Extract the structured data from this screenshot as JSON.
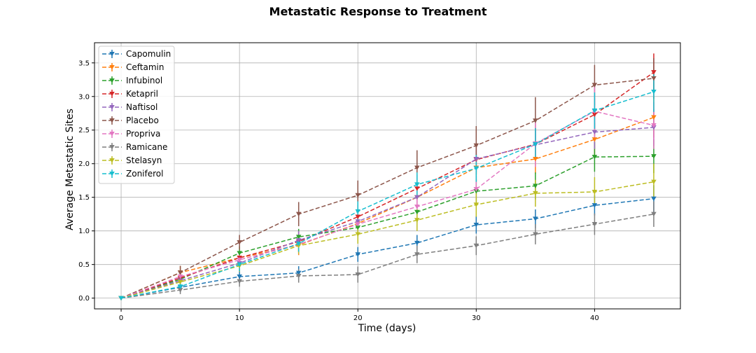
{
  "chart_data": {
    "type": "line",
    "title": "Metastatic Response to Treatment",
    "xlabel": "Time (days)",
    "ylabel": "Average Metastatic Sites",
    "x": [
      0,
      5,
      10,
      15,
      20,
      25,
      30,
      35,
      40,
      45
    ],
    "xlim": [
      -2.25,
      47.25
    ],
    "ylim": [
      -0.16,
      3.8
    ],
    "x_ticks": [
      0,
      10,
      20,
      30,
      40
    ],
    "y_ticks": [
      0.0,
      0.5,
      1.0,
      1.5,
      2.0,
      2.5,
      3.0,
      3.5
    ],
    "x_tick_labels": [
      "0",
      "10",
      "20",
      "30",
      "40"
    ],
    "y_tick_labels": [
      "0.0",
      "0.5",
      "1.0",
      "1.5",
      "2.0",
      "2.5",
      "3.0",
      "3.5"
    ],
    "grid": true,
    "legend_position": "top-left",
    "line_style": "dashed",
    "marker": "triangle-down",
    "series": [
      {
        "name": "Capomulin",
        "color": "#1f77b4",
        "values": [
          0.0,
          0.16,
          0.32,
          0.375,
          0.65,
          0.82,
          1.09,
          1.18,
          1.38,
          1.48
        ],
        "errors": [
          0.0,
          0.07,
          0.1,
          0.1,
          0.11,
          0.12,
          0.13,
          0.14,
          0.15,
          0.2
        ]
      },
      {
        "name": "Ceftamin",
        "color": "#ff7f0e",
        "values": [
          0.0,
          0.38,
          0.6,
          0.79,
          1.11,
          1.5,
          1.94,
          2.07,
          2.36,
          2.69
        ],
        "errors": [
          0.0,
          0.1,
          0.1,
          0.15,
          0.15,
          0.18,
          0.2,
          0.22,
          0.25,
          0.3
        ]
      },
      {
        "name": "Infubinol",
        "color": "#2ca02c",
        "values": [
          0.0,
          0.28,
          0.67,
          0.91,
          1.05,
          1.28,
          1.59,
          1.67,
          2.1,
          2.11
        ],
        "errors": [
          0.0,
          0.08,
          0.1,
          0.12,
          0.14,
          0.16,
          0.18,
          0.2,
          0.22,
          0.25
        ]
      },
      {
        "name": "Ketapril",
        "color": "#d62728",
        "values": [
          0.0,
          0.3,
          0.6,
          0.84,
          1.21,
          1.63,
          2.06,
          2.29,
          2.73,
          3.36
        ],
        "errors": [
          0.0,
          0.1,
          0.1,
          0.15,
          0.18,
          0.2,
          0.22,
          0.24,
          0.25,
          0.28
        ]
      },
      {
        "name": "Naftisol",
        "color": "#9467bd",
        "values": [
          0.0,
          0.26,
          0.52,
          0.86,
          1.14,
          1.5,
          2.07,
          2.28,
          2.47,
          2.54
        ],
        "errors": [
          0.0,
          0.08,
          0.1,
          0.14,
          0.16,
          0.18,
          0.2,
          0.22,
          0.25,
          0.27
        ]
      },
      {
        "name": "Placebo",
        "color": "#8c564b",
        "values": [
          0.0,
          0.38,
          0.83,
          1.25,
          1.53,
          1.94,
          2.27,
          2.64,
          3.17,
          3.27
        ],
        "errors": [
          0.0,
          0.1,
          0.11,
          0.18,
          0.22,
          0.26,
          0.29,
          0.35,
          0.3,
          0.3
        ]
      },
      {
        "name": "Propriva",
        "color": "#e377c2",
        "values": [
          0.0,
          0.32,
          0.57,
          0.8,
          1.1,
          1.36,
          1.62,
          2.3,
          2.78,
          2.57
        ],
        "errors": [
          0.0,
          0.09,
          0.1,
          0.14,
          0.16,
          0.18,
          0.2,
          0.35,
          0.4,
          0.35
        ]
      },
      {
        "name": "Ramicane",
        "color": "#7f7f7f",
        "values": [
          0.0,
          0.12,
          0.25,
          0.33,
          0.35,
          0.65,
          0.78,
          0.95,
          1.1,
          1.25
        ],
        "errors": [
          0.0,
          0.06,
          0.08,
          0.1,
          0.12,
          0.13,
          0.14,
          0.15,
          0.16,
          0.19
        ]
      },
      {
        "name": "Stelasyn",
        "color": "#bcbd22",
        "values": [
          0.0,
          0.24,
          0.48,
          0.78,
          0.95,
          1.16,
          1.39,
          1.56,
          1.58,
          1.73
        ],
        "errors": [
          0.0,
          0.08,
          0.09,
          0.12,
          0.14,
          0.16,
          0.18,
          0.2,
          0.22,
          0.27
        ]
      },
      {
        "name": "Zoniferol",
        "color": "#17becf",
        "values": [
          0.0,
          0.17,
          0.5,
          0.81,
          1.29,
          1.69,
          1.93,
          2.29,
          2.79,
          3.07
        ],
        "errors": [
          0.0,
          0.07,
          0.1,
          0.12,
          0.15,
          0.18,
          0.2,
          0.24,
          0.27,
          0.3
        ]
      }
    ]
  }
}
